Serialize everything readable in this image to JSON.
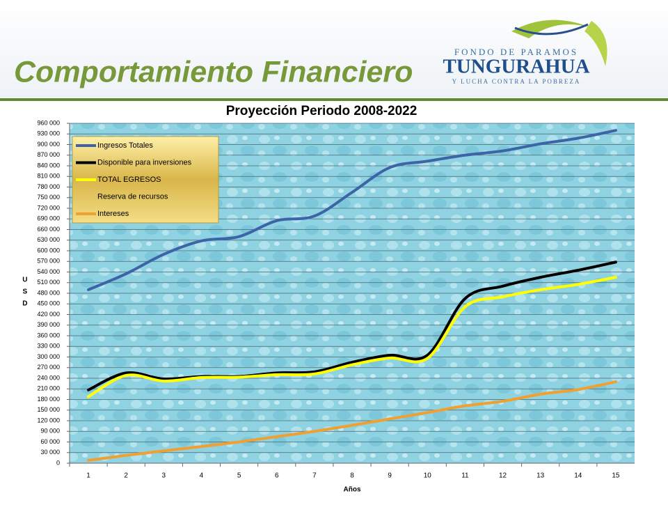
{
  "header": {
    "title": "Comportamiento Financiero",
    "logo": {
      "top": "FONDO DE PARAMOS",
      "name": "TUNGURAHUA",
      "bottom": "Y LUCHA CONTRA LA POBREZA"
    }
  },
  "chart_data": {
    "type": "line",
    "title": "Proyección Periodo 2008-2022",
    "x_label": "Años",
    "y_label": "USD",
    "categories": [
      "1",
      "2",
      "3",
      "4",
      "5",
      "6",
      "7",
      "8",
      "9",
      "10",
      "11",
      "12",
      "13",
      "14",
      "15"
    ],
    "series": [
      {
        "name": "Ingresos Totales",
        "color": "#3d64a6",
        "values": [
          490000,
          535000,
          590000,
          628000,
          640000,
          685000,
          698000,
          765000,
          835000,
          853000,
          870000,
          882000,
          902000,
          918000,
          940000
        ]
      },
      {
        "name": "Disponible para inversiones",
        "color": "#000000",
        "values": [
          207000,
          255000,
          238000,
          245000,
          245000,
          255000,
          258000,
          285000,
          305000,
          305000,
          465000,
          500000,
          525000,
          545000,
          568000
        ]
      },
      {
        "name": "TOTAL EGRESOS",
        "color": "#ffff00",
        "values": [
          188000,
          248000,
          232000,
          242000,
          243000,
          250000,
          252000,
          278000,
          297000,
          296000,
          442000,
          470000,
          490000,
          505000,
          525000
        ]
      },
      {
        "name": "Reserva de recursos",
        "color": null,
        "values": [
          null,
          null,
          null,
          null,
          null,
          null,
          null,
          null,
          null,
          null,
          null,
          null,
          null,
          null,
          null
        ]
      },
      {
        "name": "Intereses",
        "color": "#f0a030",
        "values": [
          8000,
          22000,
          35000,
          47000,
          60000,
          75000,
          90000,
          107000,
          125000,
          143000,
          162000,
          175000,
          195000,
          208000,
          230000
        ]
      }
    ],
    "ylim": [
      0,
      960000
    ],
    "yticks": [
      0,
      {
        "value": 30000,
        "label": "30 000"
      },
      {
        "value": 60000,
        "label": "60 000"
      },
      {
        "value": 90000,
        "label": "90 000"
      },
      {
        "value": 120000,
        "label": "120 000"
      },
      {
        "value": 150000,
        "label": "150 000"
      },
      {
        "value": 180000,
        "label": "180 000"
      },
      {
        "value": 210000,
        "label": "210 000"
      },
      {
        "value": 240000,
        "label": "240 000"
      },
      {
        "value": 270000,
        "label": "270 000"
      },
      {
        "value": 300000,
        "label": "300 000"
      },
      {
        "value": 330000,
        "label": "330 000"
      },
      {
        "value": 360000,
        "label": "360 000"
      },
      {
        "value": 390000,
        "label": "390 000"
      },
      {
        "value": 420000,
        "label": "420 000"
      },
      {
        "value": 450000,
        "label": "450 000"
      },
      {
        "value": 480000,
        "label": "480 000"
      },
      {
        "value": 510000,
        "label": "510 000"
      },
      {
        "value": 540000,
        "label": "540 000"
      },
      {
        "value": 570000,
        "label": "570 000"
      },
      {
        "value": 600000,
        "label": "600 000"
      },
      {
        "value": 630000,
        "label": "630 000"
      },
      {
        "value": 660000,
        "label": "660 000"
      },
      {
        "value": 690000,
        "label": "690 000"
      },
      {
        "value": 720000,
        "label": "720 000"
      },
      {
        "value": 750000,
        "label": "750 000"
      },
      {
        "value": 780000,
        "label": "780 000"
      },
      {
        "value": 810000,
        "label": "810 000"
      },
      {
        "value": 840000,
        "label": "840 000"
      },
      {
        "value": 870000,
        "label": "870 000"
      },
      {
        "value": 900000,
        "label": "900 000"
      },
      {
        "value": 930000,
        "label": "930 000"
      },
      {
        "value": 960000,
        "label": "960 000"
      }
    ],
    "grid": true,
    "legend": "upper left"
  }
}
